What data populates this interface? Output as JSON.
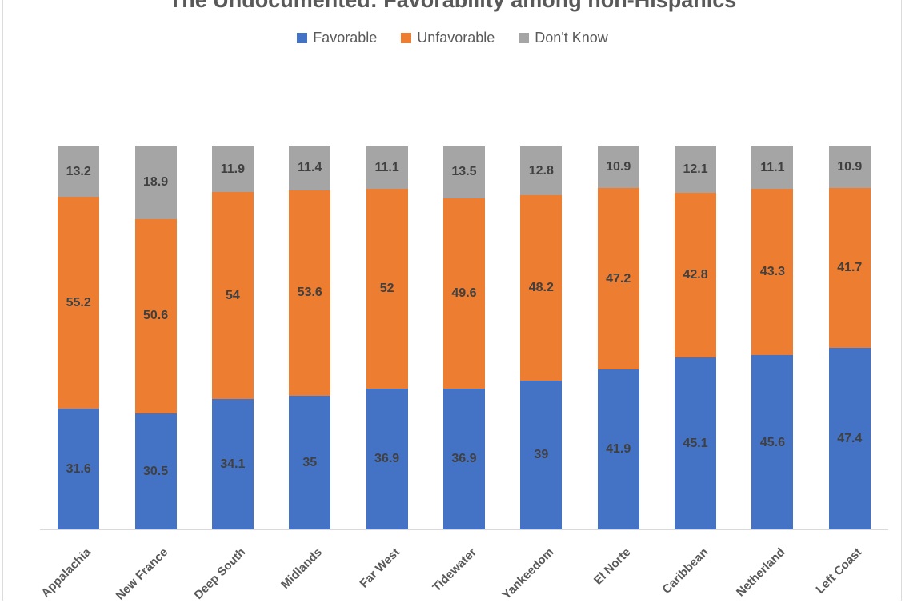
{
  "chart_data": {
    "type": "bar",
    "stacked": true,
    "percent_stacked": true,
    "title": "The Undocumented: Favorability among non-Hispanics",
    "categories": [
      "Appalachia",
      "New France",
      "Deep South",
      "Midlands",
      "Far West",
      "Tidewater",
      "Yankeedom",
      "El Norte",
      "Caribbean",
      "Netherland",
      "Left Coast"
    ],
    "series": [
      {
        "name": "Favorable",
        "color": "#4472C4",
        "values": [
          31.6,
          30.5,
          34.1,
          35,
          36.9,
          36.9,
          39,
          41.9,
          45.1,
          45.6,
          47.4
        ]
      },
      {
        "name": "Unfavorable",
        "color": "#ED7D31",
        "values": [
          55.2,
          50.6,
          54,
          53.6,
          52,
          49.6,
          48.2,
          47.2,
          42.8,
          43.3,
          41.7
        ]
      },
      {
        "name": "Don't Know",
        "color": "#A5A5A5",
        "values": [
          13.2,
          18.9,
          11.9,
          11.4,
          11.1,
          13.5,
          12.8,
          10.9,
          12.1,
          11.1,
          10.9
        ]
      }
    ],
    "ylim": [
      0,
      100
    ],
    "grid": false,
    "legend_position": "top",
    "xlabel": "",
    "ylabel": ""
  },
  "legend": [
    {
      "label": "Favorable",
      "color": "#4472C4"
    },
    {
      "label": "Unfavorable",
      "color": "#ED7D31"
    },
    {
      "label": "Don't Know",
      "color": "#A5A5A5"
    }
  ],
  "colors": {
    "data_label_text": "#404040",
    "axis_text": "#595959",
    "title_text": "#595959",
    "axis_line": "#D9D9D9",
    "frame_border": "#DCDCDC"
  }
}
